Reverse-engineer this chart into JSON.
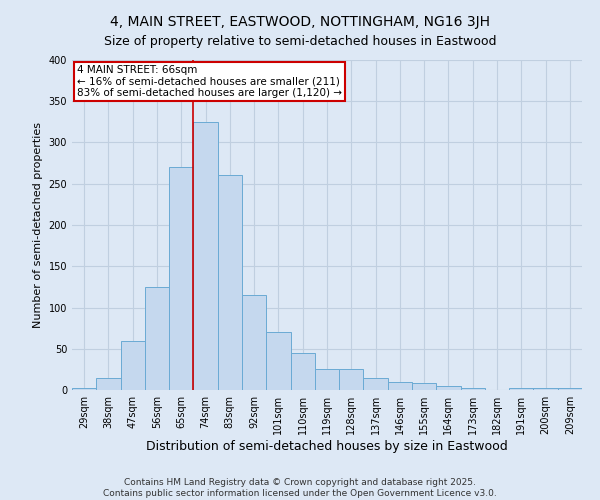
{
  "title": "4, MAIN STREET, EASTWOOD, NOTTINGHAM, NG16 3JH",
  "subtitle": "Size of property relative to semi-detached houses in Eastwood",
  "xlabel": "Distribution of semi-detached houses by size in Eastwood",
  "ylabel": "Number of semi-detached properties",
  "categories": [
    "29sqm",
    "38sqm",
    "47sqm",
    "56sqm",
    "65sqm",
    "74sqm",
    "83sqm",
    "92sqm",
    "101sqm",
    "110sqm",
    "119sqm",
    "128sqm",
    "137sqm",
    "146sqm",
    "155sqm",
    "164sqm",
    "173sqm",
    "182sqm",
    "191sqm",
    "200sqm",
    "209sqm"
  ],
  "values": [
    3,
    15,
    60,
    125,
    270,
    325,
    260,
    115,
    70,
    45,
    25,
    25,
    15,
    10,
    8,
    5,
    3,
    0,
    3,
    3,
    3
  ],
  "bar_color": "#c5d8ee",
  "bar_edgecolor": "#6aaad4",
  "annotation_text_line1": "4 MAIN STREET: 66sqm",
  "annotation_text_line2": "← 16% of semi-detached houses are smaller (211)",
  "annotation_text_line3": "83% of semi-detached houses are larger (1,120) →",
  "annotation_box_facecolor": "#ffffff",
  "annotation_box_edgecolor": "#cc0000",
  "redline_color": "#cc0000",
  "footer_line1": "Contains HM Land Registry data © Crown copyright and database right 2025.",
  "footer_line2": "Contains public sector information licensed under the Open Government Licence v3.0.",
  "bg_color": "#dde8f5",
  "plot_bg_color": "#dde8f5",
  "grid_color": "#c0cfe0",
  "ylim": [
    0,
    400
  ],
  "yticks": [
    0,
    50,
    100,
    150,
    200,
    250,
    300,
    350,
    400
  ],
  "title_fontsize": 10,
  "subtitle_fontsize": 9,
  "xlabel_fontsize": 9,
  "ylabel_fontsize": 8,
  "tick_fontsize": 7,
  "footer_fontsize": 6.5,
  "annotation_fontsize": 7.5
}
